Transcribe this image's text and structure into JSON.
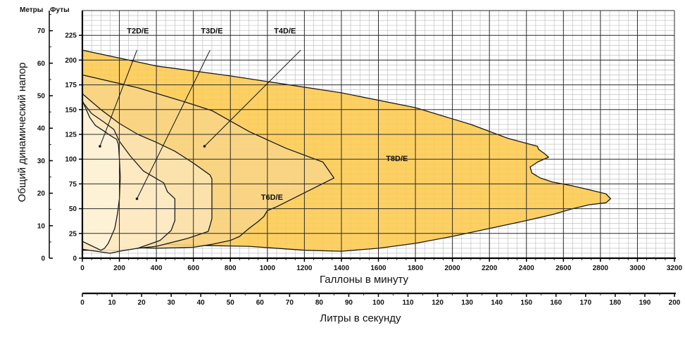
{
  "chart_data": {
    "type": "area",
    "xlabel": "Галлоны в минуту",
    "x2label": "Литры в секунду",
    "ylabel": "Общий динамический напор",
    "y_unit_left": "Метры",
    "y_unit_right": "Футы",
    "x_ticks": [
      0,
      200,
      400,
      600,
      800,
      1000,
      1200,
      1400,
      1600,
      1800,
      2000,
      2200,
      2400,
      2600,
      2800,
      3000,
      3200
    ],
    "x2_ticks": [
      0,
      10,
      20,
      30,
      40,
      50,
      60,
      70,
      80,
      90,
      100,
      110,
      120,
      130,
      140,
      150,
      160,
      170,
      180,
      190,
      200
    ],
    "y_ft_ticks": [
      0,
      25,
      50,
      75,
      100,
      125,
      150,
      175,
      200,
      225
    ],
    "y_m_ticks": [
      0,
      10,
      20,
      30,
      40,
      50,
      60,
      70
    ],
    "xlim": [
      0,
      3200
    ],
    "x2lim": [
      0,
      200
    ],
    "ylim_ft": [
      0,
      250
    ],
    "ylim_m": [
      0,
      76.2
    ],
    "grid": true,
    "series": [
      {
        "name": "T8D/E",
        "color": "#fdc94f",
        "label_pos": [
          1700,
          98
        ],
        "points": [
          [
            0,
            210
          ],
          [
            400,
            194
          ],
          [
            800,
            184
          ],
          [
            1400,
            167
          ],
          [
            1800,
            152
          ],
          [
            2100,
            135
          ],
          [
            2300,
            121
          ],
          [
            2460,
            113
          ],
          [
            2465,
            110
          ],
          [
            2495,
            106
          ],
          [
            2520,
            102
          ],
          [
            2460,
            97
          ],
          [
            2420,
            92
          ],
          [
            2430,
            86
          ],
          [
            2475,
            81
          ],
          [
            2540,
            77
          ],
          [
            2650,
            73
          ],
          [
            2740,
            69
          ],
          [
            2830,
            65
          ],
          [
            2855,
            60
          ],
          [
            2830,
            56
          ],
          [
            2740,
            54
          ],
          [
            2650,
            50
          ],
          [
            2540,
            44
          ],
          [
            2400,
            38
          ],
          [
            2200,
            30
          ],
          [
            2000,
            22
          ],
          [
            1800,
            15
          ],
          [
            1600,
            10
          ],
          [
            1400,
            7
          ],
          [
            1200,
            8
          ],
          [
            900,
            12
          ],
          [
            600,
            13
          ],
          [
            200,
            16
          ],
          [
            0,
            22
          ]
        ]
      },
      {
        "name": "T6D/E",
        "color": "#f8d587",
        "label_pos": [
          1025,
          59
        ],
        "points": [
          [
            0,
            185
          ],
          [
            300,
            172
          ],
          [
            550,
            158
          ],
          [
            700,
            149
          ],
          [
            900,
            128
          ],
          [
            1100,
            111
          ],
          [
            1300,
            97
          ],
          [
            1360,
            81
          ],
          [
            1200,
            66
          ],
          [
            1050,
            52
          ],
          [
            1000,
            48
          ],
          [
            980,
            42
          ],
          [
            950,
            37
          ],
          [
            900,
            30
          ],
          [
            850,
            22
          ],
          [
            800,
            18
          ],
          [
            700,
            14
          ],
          [
            600,
            11
          ],
          [
            400,
            10
          ],
          [
            200,
            11
          ],
          [
            0,
            13
          ]
        ]
      },
      {
        "name": "T4D/E",
        "color": "#fbe4b3",
        "label_pos": [
          1085,
          88
        ],
        "points": [
          [
            0,
            166
          ],
          [
            100,
            150
          ],
          [
            200,
            136
          ],
          [
            300,
            125
          ],
          [
            400,
            117
          ],
          [
            500,
            108
          ],
          [
            600,
            96
          ],
          [
            690,
            84
          ],
          [
            700,
            80
          ],
          [
            700,
            40
          ],
          [
            690,
            33
          ],
          [
            680,
            27
          ],
          [
            570,
            20
          ],
          [
            400,
            12
          ],
          [
            200,
            8
          ],
          [
            0,
            8
          ]
        ]
      },
      {
        "name": "T3D/E",
        "color": "#fdebc6",
        "label_pos": [
          695,
          100
        ],
        "points": [
          [
            0,
            158
          ],
          [
            50,
            146
          ],
          [
            120,
            137
          ],
          [
            170,
            130
          ],
          [
            200,
            118
          ],
          [
            260,
            103
          ],
          [
            330,
            88
          ],
          [
            440,
            76
          ],
          [
            460,
            67
          ],
          [
            500,
            60
          ],
          [
            500,
            38
          ],
          [
            480,
            28
          ],
          [
            420,
            18
          ],
          [
            300,
            10
          ],
          [
            200,
            7
          ],
          [
            150,
            5
          ],
          [
            0,
            9
          ]
        ]
      },
      {
        "name": "T2D/E",
        "color": "#fef3d8",
        "label_pos": [
          275,
          100
        ],
        "points": [
          [
            0,
            159
          ],
          [
            40,
            142
          ],
          [
            70,
            134
          ],
          [
            120,
            128
          ],
          [
            150,
            124
          ],
          [
            185,
            120
          ],
          [
            195,
            115
          ],
          [
            200,
            100
          ],
          [
            205,
            82
          ],
          [
            200,
            60
          ],
          [
            190,
            45
          ],
          [
            175,
            30
          ],
          [
            140,
            15
          ],
          [
            120,
            10
          ],
          [
            100,
            8
          ],
          [
            0,
            17
          ]
        ]
      }
    ],
    "pointers": [
      {
        "from": [
          95,
          113
        ],
        "to": [
          295,
          210
        ]
      },
      {
        "from": [
          295,
          60
        ],
        "to": [
          690,
          210
        ]
      },
      {
        "from": [
          660,
          113
        ],
        "to": [
          1180,
          210
        ]
      }
    ]
  }
}
